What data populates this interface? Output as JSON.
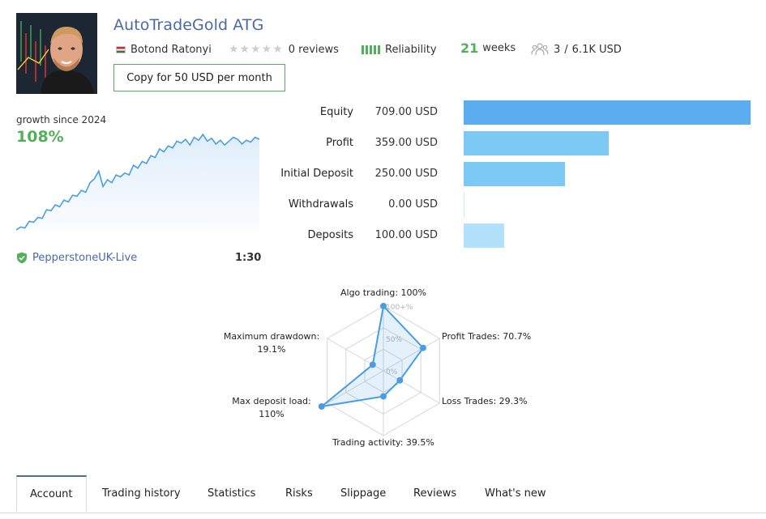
{
  "header": {
    "title": "AutoTradeGold ATG",
    "author": "Botond Ratonyi",
    "reviews": "0 reviews",
    "reliability": "Reliability",
    "weeks_num": "21",
    "weeks_label": "weeks",
    "subscribers": "3",
    "funds": "6.1K USD",
    "copy_button": "Copy for 50 USD per month"
  },
  "growth": {
    "label": "growth since 2024",
    "value": "108%",
    "chart_data": {
      "type": "area",
      "values": [
        1,
        4,
        3,
        10,
        9,
        14,
        13,
        22,
        21,
        27,
        25,
        32,
        30,
        37,
        36,
        42,
        40,
        50,
        54,
        62,
        46,
        53,
        50,
        58,
        56,
        60,
        58,
        68,
        65,
        72,
        70,
        78,
        76,
        85,
        82,
        88,
        86,
        93,
        91,
        95,
        89,
        97,
        94,
        100,
        93,
        96,
        90,
        94,
        89,
        93,
        97,
        95,
        90,
        94,
        92,
        97,
        95
      ],
      "color": "#4a9de0"
    }
  },
  "account": {
    "broker": "PepperstoneUK-Live",
    "leverage": "1:30"
  },
  "stats": [
    {
      "label": "Equity",
      "value": "709.00 USD",
      "amount": 709,
      "color": "#5aaef0"
    },
    {
      "label": "Profit",
      "value": "359.00 USD",
      "amount": 359,
      "color": "#7ccaf4"
    },
    {
      "label": "Initial Deposit",
      "value": "250.00 USD",
      "amount": 250,
      "color": "#7ccaf4"
    },
    {
      "label": "Withdrawals",
      "value": "0.00 USD",
      "amount": 0,
      "color": "#b3e0fa"
    },
    {
      "label": "Deposits",
      "value": "100.00 USD",
      "amount": 100,
      "color": "#b3e0fa"
    }
  ],
  "radar": {
    "scale_100": "100+%",
    "scale_50": "50%",
    "scale_0": "0%",
    "chart_data": {
      "type": "radar",
      "axes": [
        {
          "label": "Algo trading: 100%",
          "value": 100
        },
        {
          "label": "Profit Trades: 70.7%",
          "value": 70.7
        },
        {
          "label": "Loss Trades: 29.3%",
          "value": 29.3
        },
        {
          "label": "Trading activity: 39.5%",
          "value": 39.5
        },
        {
          "label": "Max deposit load:",
          "value_label": "110%",
          "value": 110
        },
        {
          "label": "Maximum drawdown:",
          "value_label": "19.1%",
          "value": 19.1
        }
      ],
      "color": "#4a9de0"
    }
  },
  "tabs": [
    {
      "label": "Account",
      "active": true
    },
    {
      "label": "Trading history"
    },
    {
      "label": "Statistics"
    },
    {
      "label": "Risks"
    },
    {
      "label": "Slippage"
    },
    {
      "label": "Reviews"
    },
    {
      "label": "What's new"
    }
  ]
}
